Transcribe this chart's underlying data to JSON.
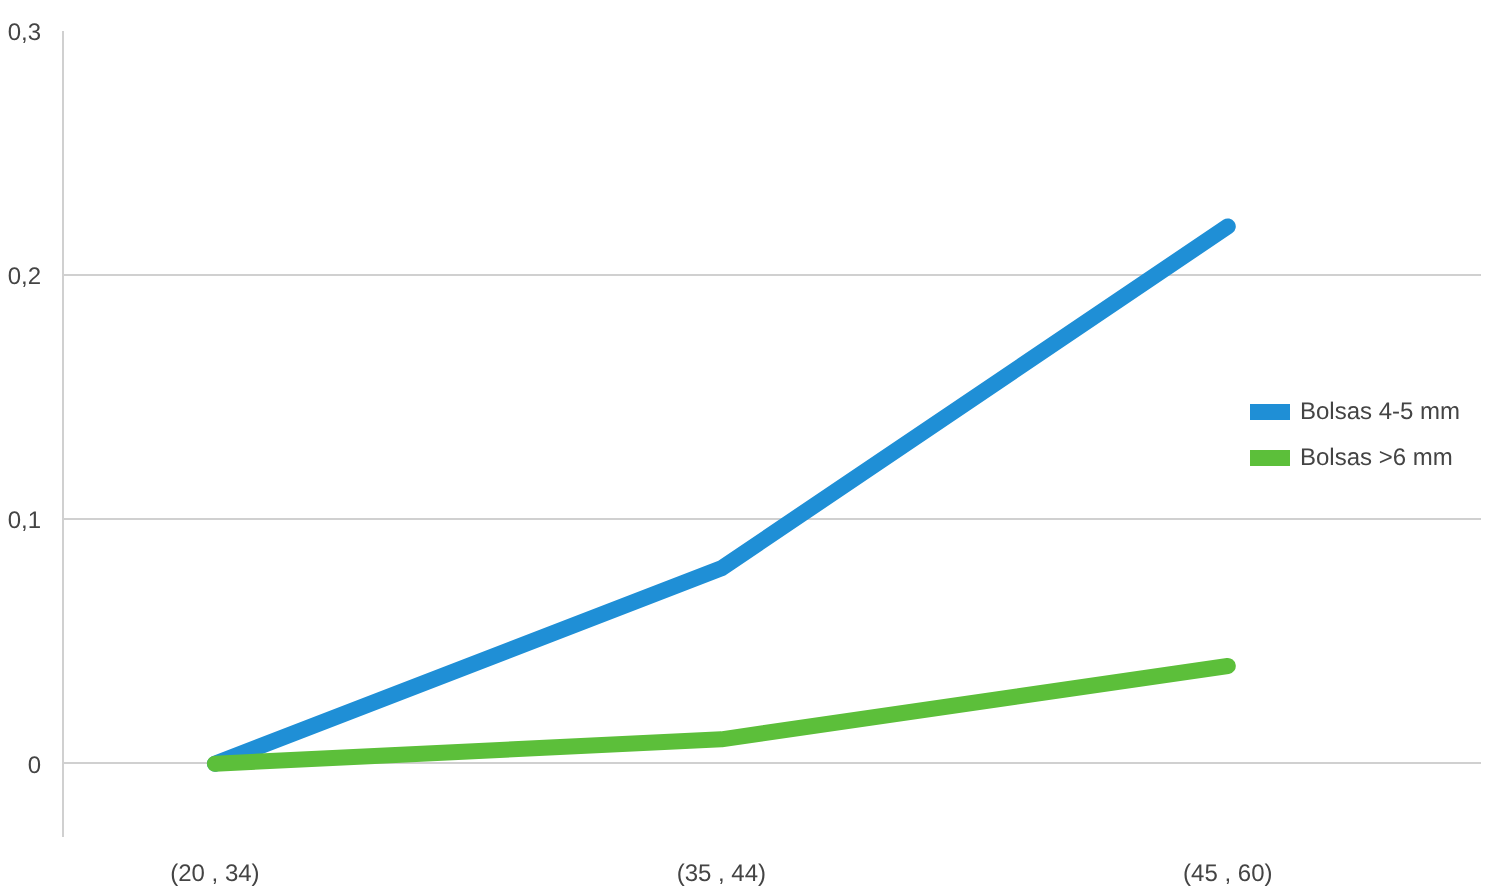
{
  "chart_data": {
    "type": "line",
    "categories": [
      "(20 , 34)",
      "(35 , 44)",
      "(45 , 60)"
    ],
    "series": [
      {
        "name": "Bolsas 4-5 mm",
        "color": "#1f8fd6",
        "values": [
          0,
          0.08,
          0.22
        ]
      },
      {
        "name": "Bolsas >6 mm",
        "color": "#5cbf3a",
        "values": [
          0,
          0.01,
          0.04
        ]
      }
    ],
    "ylim": [
      -0.03,
      0.3
    ],
    "yticks": [
      0,
      {
        "value": 0.1,
        "label": "0,1"
      },
      {
        "value": 0.2,
        "label": "0,2"
      },
      {
        "value": 0.3,
        "label": "0,3"
      }
    ],
    "grid": "y",
    "legend": "right",
    "line_style": "solid"
  }
}
